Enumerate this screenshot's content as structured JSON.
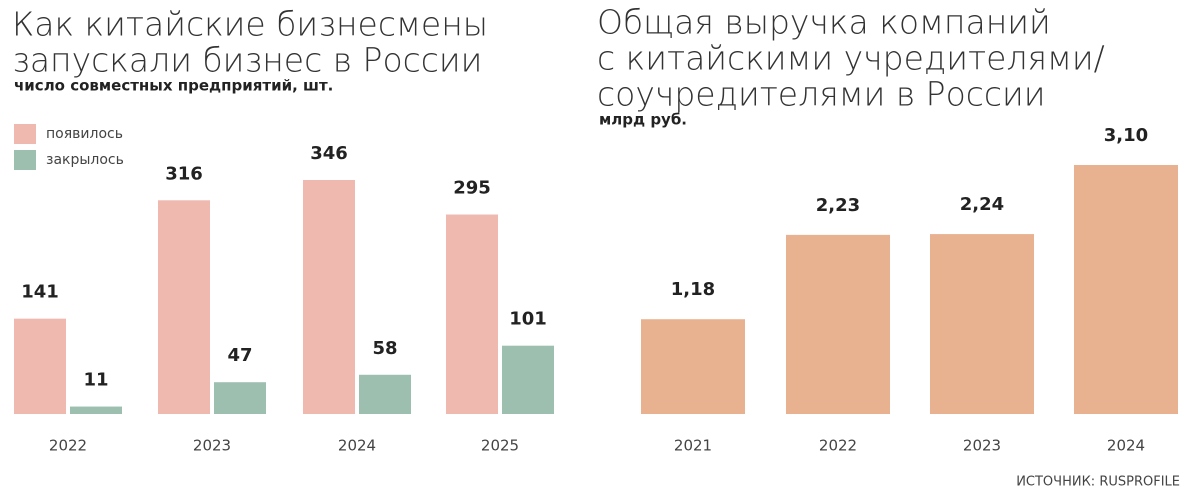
{
  "chart_data": [
    {
      "type": "bar",
      "title": [
        "Как китайские бизнесмены",
        "запускали бизнес в России"
      ],
      "subtitle": "число совместных предприятий, шт.",
      "categories": [
        "2022",
        "2023",
        "2024",
        "2025"
      ],
      "series": [
        {
          "name": "появилось",
          "color": "#f0b9b0",
          "values": [
            141,
            316,
            346,
            295
          ]
        },
        {
          "name": "закрылось",
          "color": "#9dbfb0",
          "values": [
            11,
            47,
            58,
            101
          ]
        }
      ],
      "ylim": [
        0,
        346
      ]
    },
    {
      "type": "bar",
      "title": [
        "Общая выручка компаний",
        "с китайскими учредителями/",
        "соучредителями в России"
      ],
      "subtitle": "млрд руб.",
      "categories": [
        "2021",
        "2022",
        "2023",
        "2024"
      ],
      "values": [
        1.18,
        2.23,
        2.24,
        3.1
      ],
      "value_labels": [
        "1,18",
        "2,23",
        "2,24",
        "3,10"
      ],
      "color": "#e8b18f",
      "ylim": [
        0,
        3.1
      ]
    }
  ],
  "source": "ИСТОЧНИК: RUSPROFILE"
}
